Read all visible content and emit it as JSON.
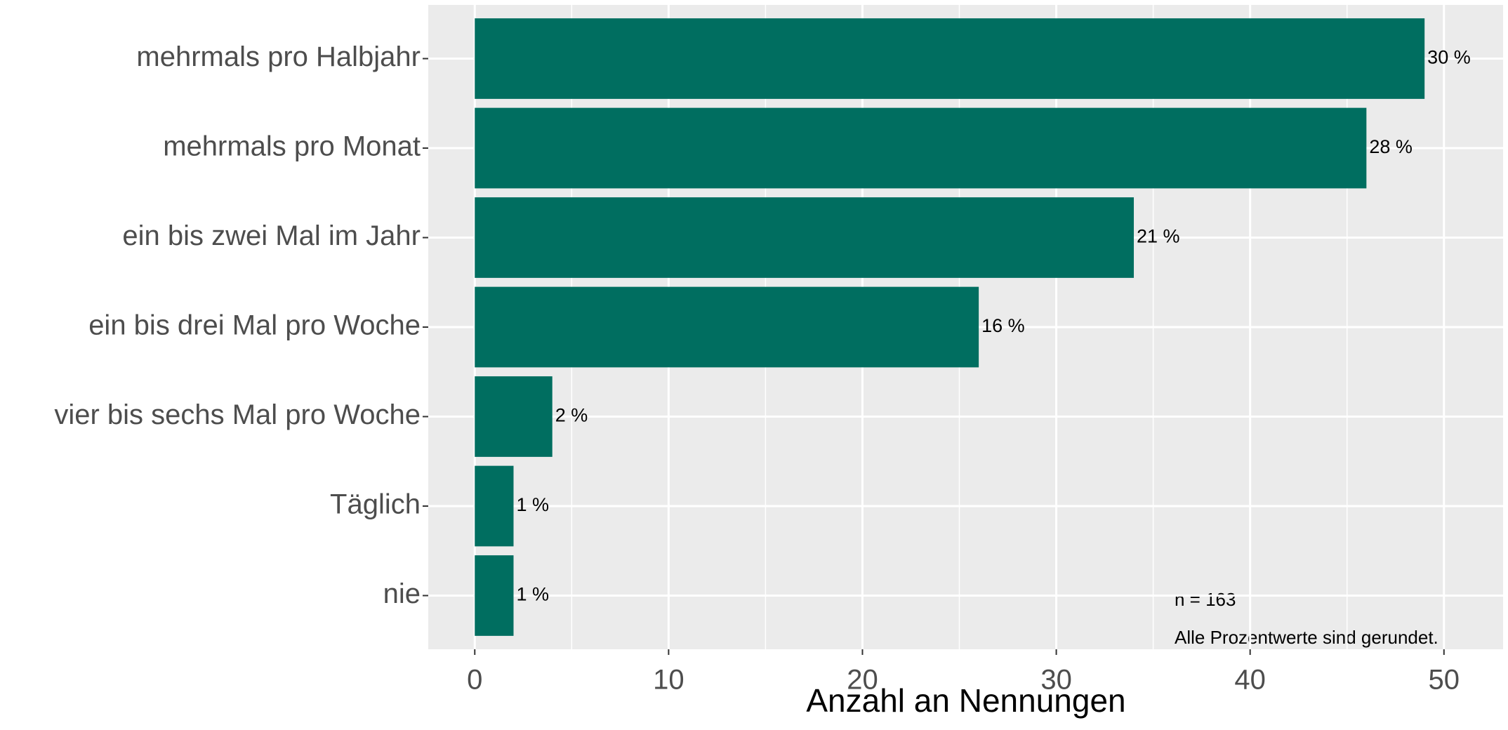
{
  "chart_data": {
    "type": "barh",
    "categories": [
      "mehrmals pro Halbjahr",
      "mehrmals pro Monat",
      "ein bis zwei Mal im Jahr",
      "ein bis drei Mal pro Woche",
      "vier bis sechs Mal pro Woche",
      "Täglich",
      "nie"
    ],
    "values": [
      49,
      46,
      34,
      26,
      4,
      2,
      2
    ],
    "value_labels": [
      "30 %",
      "28 %",
      "21 %",
      "16 %",
      "2 %",
      "1 %",
      "1 %"
    ],
    "color": "#006e60",
    "xlabel": "Anzahl an Nennungen",
    "xlim": [
      -2.4,
      53.05
    ],
    "xticks": [
      0,
      10,
      20,
      30,
      40,
      50
    ],
    "xminorticks": [
      5,
      15,
      25,
      35,
      45
    ],
    "grid": true,
    "annotations": [
      "n = 163",
      "Alle Prozentwerte sind gerundet."
    ]
  }
}
